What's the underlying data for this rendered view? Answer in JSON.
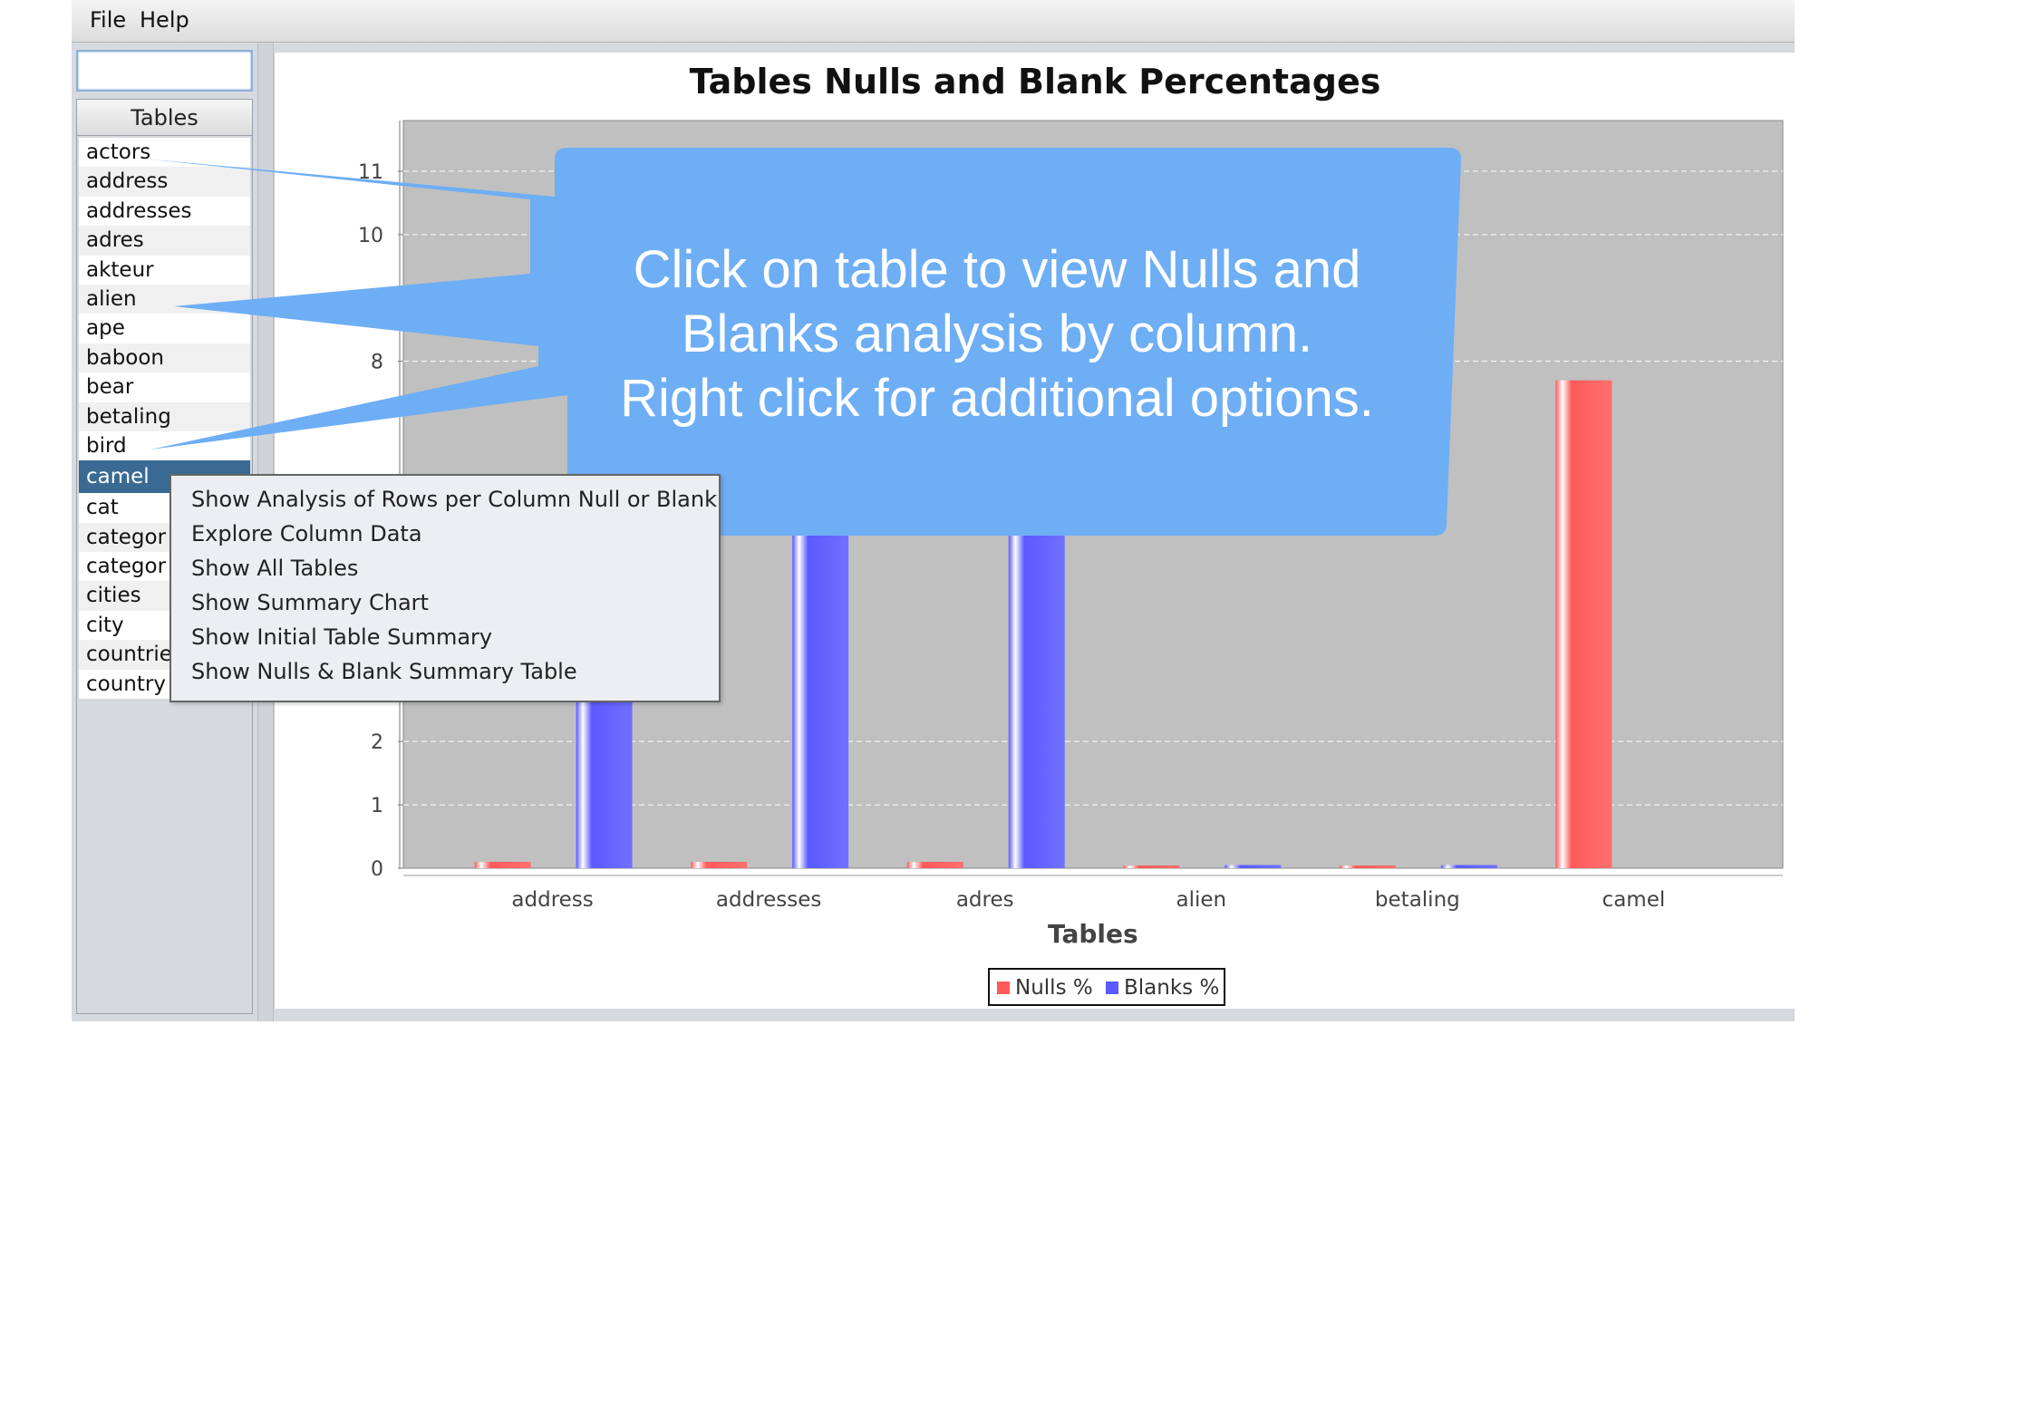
{
  "menubar": {
    "file": "File",
    "help": "Help"
  },
  "search": {
    "value": ""
  },
  "table_list": {
    "header": "Tables",
    "items": [
      "actors",
      "address",
      "addresses",
      "adres",
      "akteur",
      "alien",
      "ape",
      "baboon",
      "bear",
      "betaling",
      "bird",
      "camel",
      "cat",
      "categor",
      "categor",
      "cities",
      "city",
      "countrie",
      "country"
    ],
    "selected": "camel"
  },
  "context_menu": {
    "items": [
      "Show Analysis of Rows per Column Null or Blank",
      "Explore Column Data",
      "Show All Tables",
      "Show Summary Chart",
      "Show Initial Table Summary",
      "Show Nulls & Blank Summary Table"
    ]
  },
  "callout": {
    "line1": "Click on table to view Nulls and",
    "line2": "Blanks analysis by column.",
    "line3": "Right  click for additional options."
  },
  "colors": {
    "nulls": "#ff5a5a",
    "blanks": "#5a5aff",
    "plot_bg": "#c0c0c0",
    "callout": "#6eaef5",
    "selection": "#3a6a93"
  },
  "chart_data": {
    "type": "bar",
    "title": "Tables Nulls and Blank Percentages",
    "xlabel": "Tables",
    "ylabel": "",
    "categories": [
      "address",
      "addresses",
      "adres",
      "alien",
      "betaling",
      "camel"
    ],
    "series": [
      {
        "name": "Nulls %",
        "values": [
          0.1,
          0.1,
          0.1,
          0.02,
          0.02,
          7.7
        ]
      },
      {
        "name": "Blanks %",
        "values": [
          10,
          10,
          10,
          0.05,
          0.05,
          0
        ]
      }
    ],
    "ylim": [
      0,
      11.8
    ],
    "yticks": [
      0,
      1,
      2,
      8,
      10,
      11
    ],
    "grid": true,
    "legend": "bottom"
  }
}
